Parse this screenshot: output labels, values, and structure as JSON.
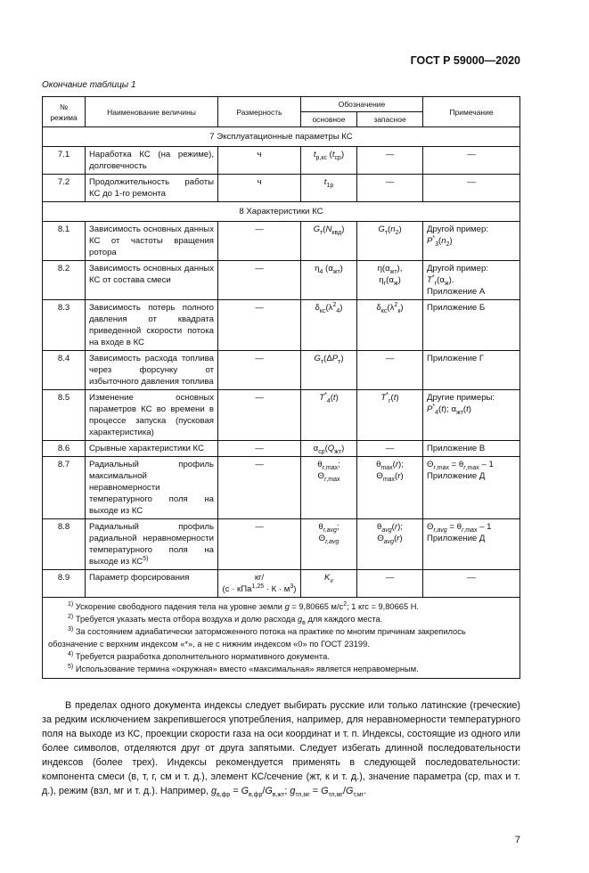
{
  "header": {
    "doc_code": "ГОСТ Р 59000—2020"
  },
  "table_caption": "Окончание таблицы 1",
  "table": {
    "headers": {
      "num": "№ режима",
      "name": "Наименование величины",
      "unit": "Размерность",
      "designation": "Обозначение",
      "main": "основное",
      "spare": "запасное",
      "note": "Примечание"
    },
    "sections": [
      {
        "title": "7 Эксплуатационные параметры КС",
        "rows": [
          {
            "num": "7.1",
            "name": "Наработка КС (на режиме), долговечность",
            "unit": "ч",
            "main": "<i>t</i><sub>р,кс</sub> (<i>t</i><sub>ср</sub>)",
            "spare": "—",
            "note": "—",
            "note_center": true
          },
          {
            "num": "7.2",
            "name": "Продолжительность работы КС до 1-го ремонта",
            "unit": "ч",
            "main": "<i>t</i><sub>1р</sub>",
            "spare": "—",
            "note": "—",
            "note_center": true
          }
        ]
      },
      {
        "title": "8 Характеристики КС",
        "rows": [
          {
            "num": "8.1",
            "name": "Зависимость основных данных КС от частоты вращения ротора",
            "unit": "—",
            "main": "<i>G</i><sub>т</sub>(<i>N</i><sub>квд</sub>)",
            "spare": "<i>G</i><sub>т</sub>(<i>n</i><sub>2</sub>)",
            "note": "Другой пример:<br><i>P</i><sup>*</sup><sub>3</sub>(<i>n</i><sub>2</sub>)"
          },
          {
            "num": "8.2",
            "name": "Зависимость основных данных КС от состава смеси",
            "unit": "—",
            "main": "η<sub>4</sub> (α<sub>жт</sub>)",
            "spare": "η(α<sub>жт</sub>),<br>η<sub>г</sub>(α<sub>ж</sub>)",
            "note": "Другой пример:<br><i>T</i><sup>*</sup><sub>г</sub>(α<sub>ж</sub>).<br>Приложение А"
          },
          {
            "num": "8.3",
            "name": "Зависимость потерь полного давления от квадрата приведенной скорости потока на входе в КС",
            "unit": "—",
            "main": "δ<sub>кс</sub>(λ<sup>2</sup><sub>4</sub>)",
            "spare": "δ<sub>кс</sub>(λ<sup>2</sup><sub>к</sub>)",
            "note": "Приложение Б"
          },
          {
            "num": "8.4",
            "name": "Зависимость расхода топлива через форсунку от избыточного давления топлива",
            "unit": "—",
            "main": "<i>G</i><sub>т</sub>(Δ<i>P</i><sub>т</sub>)",
            "spare": "—",
            "note": "Приложение Г"
          },
          {
            "num": "8.5",
            "name": "Изменение основных параметров КС во времени в процессе запуска (пусковая характеристика)",
            "unit": "—",
            "main": "<i>T</i><sup>*</sup><sub>4</sub>(<i>t</i>)",
            "spare": "<i>T</i><sup>*</sup><sub>г</sub>(<i>t</i>)",
            "note": "Другие примеры:<br><i>P</i><sup>*</sup><sub>4</sub>(<i>t</i>); α<sub>жт</sub>(<i>t</i>)"
          },
          {
            "num": "8.6",
            "name": "Срывные характеристики КС",
            "unit": "—",
            "main": "α<sub>ср</sub>(<i>Q</i><sub>жт</sub>)",
            "spare": "—",
            "note": "Приложение В"
          },
          {
            "num": "8.7",
            "name": "Радиальный профиль максимальной неравномерности температурного поля на выходе из КС",
            "unit": "—",
            "main": "θ<sub><i>r</i>,max</sub>;<br>Θ<sub><i>r</i>,max</sub>",
            "spare": "θ<sub>max</sub>(<i>r</i>);<br>Θ<sub>max</sub>(<i>r</i>)",
            "note": "Θ<sub><i>r</i>,max</sub> = θ<sub><i>r</i>,max</sub> – 1<br>Приложение Д"
          },
          {
            "num": "8.8",
            "name": "Радиальный профиль радиальной неравномерности температурного поля на выходе из КС<sup>5)</sup>",
            "unit": "—",
            "main": "θ<sub><i>r,avg</i></sub>;<br>Θ<sub><i>r,avg</i></sub>",
            "spare": "θ<sub><i>avg</i></sub>(<i>r</i>);<br>Θ<sub><i>avg</i></sub>(<i>r</i>)",
            "note": "Θ<sub><i>r,avg</i></sub> = θ<sub><i>r</i>,max</sub> – 1<br>Приложение Д"
          },
          {
            "num": "8.9",
            "name": "Параметр форсирования",
            "unit": "кг/<br>(с · кПа<sup>1,25</sup> · К · м<sup>3</sup>)",
            "main": "<i>K</i><sub><i>v</i></sub>",
            "spare": "—",
            "note": "—",
            "note_center": true
          }
        ]
      }
    ],
    "footnotes": [
      "<sup>1)</sup> Ускорение свободного падения тела на уровне земли <i>g</i> = 9,80665 м/с<sup>2</sup>; 1 кгс = 9,80665 Н.",
      "<sup>2)</sup> Требуется указать места отбора воздуха и долю расхода <i>g</i><sub>в</sub> для каждого места.",
      "<sup>3)</sup> За состоянием адиабатически заторможенного потока на практике по многим причинам закрепилось обозначение с верхним индексом «*», а не с нижним индексом «0» по ГОСТ 23199.",
      "<sup>4)</sup> Требуется разработка дополнительного нормативного документа.",
      "<sup>5)</sup> Использование термина «окружная» вместо «максимальная» является неправомерным."
    ]
  },
  "paragraph": "В пределах одного документа индексы следует выбирать русские или только латинские (греческие) за редким исключением закрепившегося употребления, например, для неравномерности температурного поля на выходе из КС, проекции скорости газа на оси координат и т. п. Индексы, состоящие из одного или более символов, отделяются друг от друга запятыми. Следует избегать длинной последовательности индексов (более трех). Индексы рекомендуется применять в следующей последовательности: компонента смеси (в, т, г, см и т. д.), элемент КС/сечение (жт, к и т. д.), значение параметра (ср, max и т. д.), режим (взл, мг и т. д.). Например, <i>g</i><sub>в,фр</sub> = <i>G</i><sub>в,фр</sub>/<i>G</i><sub>в,жт</sub>; <i>g</i><sub>тл,мг</sub> = <i>G</i><sub>тл,мг</sub>/<i>G</i><sub>т,мг</sub>.",
  "page_number": "7"
}
